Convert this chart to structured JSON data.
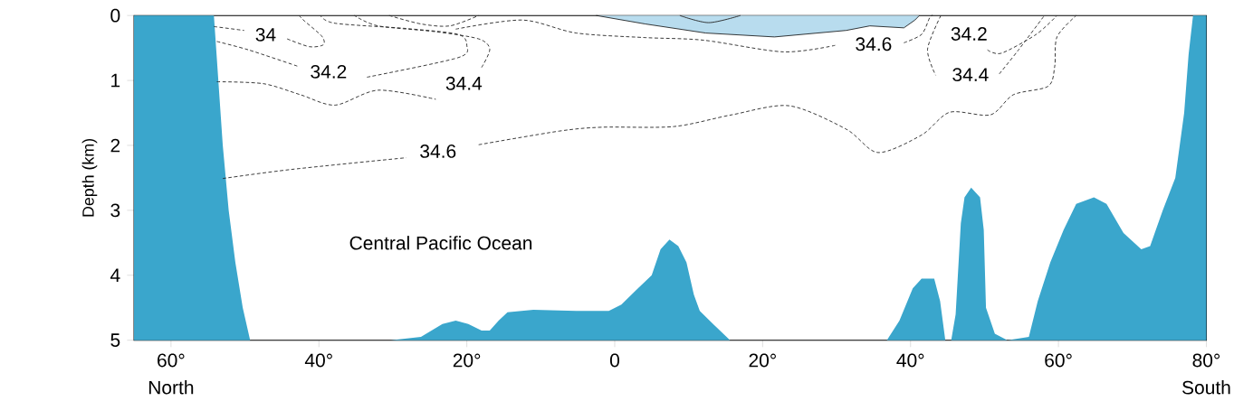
{
  "chart_data": {
    "type": "line",
    "ylabel": "Depth (km)",
    "annotations": [
      "Central Pacific Ocean",
      "North",
      "South"
    ],
    "xlim": [
      65,
      -80
    ],
    "ylim": [
      5,
      0
    ],
    "xticks": [
      {
        "value": 60,
        "label": "60°"
      },
      {
        "value": 40,
        "label": "40°"
      },
      {
        "value": 20,
        "label": "20°"
      },
      0,
      {
        "value": -20,
        "label": "20°"
      },
      {
        "value": -40,
        "label": "40°"
      },
      {
        "value": -60,
        "label": "60°"
      },
      {
        "value": -80,
        "label": "80°"
      }
    ],
    "yticks": [
      0,
      1,
      2,
      3,
      4,
      5
    ],
    "line_style": "dashed",
    "series": [
      {
        "type": "area",
        "color": "#3aa6cc",
        "x": [
          65,
          65,
          54.2,
          53.6,
          53.0,
          52.2,
          51.3,
          50.3,
          49.3,
          30.3,
          26.2,
          23.3,
          21.5,
          19.8,
          18,
          16.9,
          15.7,
          14.5,
          11,
          5.2,
          0.8,
          -0.9,
          -2.7,
          -5,
          -6.2,
          -7.4,
          -8.6,
          -9.7,
          -10.7,
          -11.5,
          -13.3,
          -15.6,
          -36.8,
          -38.5,
          -40.3,
          -41.5,
          -43.2,
          -44,
          -44.7,
          -45.5,
          -46.1,
          -46.8,
          -47.3,
          -48.2,
          -49.4,
          -49.9,
          -50.2,
          -51.4,
          -53.1,
          -56,
          -57.2,
          -58.9,
          -60.7,
          -62.4,
          -64.8,
          -66.5,
          -68.8,
          -71.2,
          -72.4,
          -74.1,
          -75.8,
          -77,
          -77.6,
          -78.2,
          -80,
          -80
        ],
        "values": [
          5,
          0,
          0,
          1.0,
          2.0,
          3.0,
          3.8,
          4.5,
          5,
          5,
          4.95,
          4.75,
          4.7,
          4.75,
          4.85,
          4.85,
          4.7,
          4.57,
          4.53,
          4.55,
          4.55,
          4.45,
          4.25,
          4.0,
          3.6,
          3.45,
          3.55,
          3.8,
          4.3,
          4.55,
          4.75,
          5,
          5,
          4.7,
          4.2,
          4.05,
          4.05,
          4.4,
          5,
          5,
          4.6,
          3.2,
          2.8,
          2.65,
          2.8,
          3.3,
          4.5,
          4.9,
          5,
          4.95,
          4.4,
          3.8,
          3.3,
          2.9,
          2.8,
          2.9,
          3.35,
          3.6,
          3.55,
          3.0,
          2.5,
          1.5,
          0.6,
          0,
          0,
          5
        ]
      },
      {
        "type": "area",
        "color": "#b8dcee",
        "x": [
          2.5,
          -4.1,
          -12.3,
          -21.6,
          -31.3,
          -34.5,
          -39.1,
          -40.6,
          -41.2
        ],
        "values": [
          0,
          0.13,
          0.27,
          0.33,
          0.23,
          0.16,
          0.19,
          0.07,
          0
        ]
      },
      {
        "name": "34",
        "color": "#222222",
        "x": [
          54.2,
          50.1,
          47.2,
          44.3,
          41.3,
          39.4,
          39.6,
          41.9,
          42.7
        ],
        "values": [
          0.17,
          0.23,
          null,
          0.36,
          0.48,
          0.45,
          0.32,
          0.09,
          0
        ]
      },
      {
        "name": "34.2",
        "color": "#222222",
        "x": [
          53.8,
          49.5,
          42.9,
          38.7,
          33.5,
          21.2,
          20.0,
          21.2,
          28.2,
          37.8,
          39.8
        ],
        "values": [
          0.4,
          0.53,
          0.78,
          null,
          0.95,
          0.65,
          0.46,
          0.29,
          0.2,
          0.12,
          0
        ]
      },
      {
        "name": "34.4",
        "color": "#222222",
        "x": [
          53.8,
          47.5,
          42.5,
          37.8,
          32.0,
          24.2,
          20.4,
          18.0,
          16.9,
          18.4,
          24.2,
          32.0,
          35.2
        ],
        "values": [
          1.02,
          1.05,
          1.22,
          1.38,
          1.15,
          1.29,
          null,
          0.8,
          0.52,
          0.36,
          0.25,
          0.16,
          0
        ]
      },
      {
        "color": "#222222",
        "x": [
          30.5,
          26.2,
          22.3,
          18.4
        ],
        "values": [
          0,
          0.13,
          0.16,
          0
        ]
      },
      {
        "name": "34.6",
        "color": "#222222",
        "x": [
          21.5,
          12.5,
          5.2,
          -4.1,
          -12.0,
          -22.8,
          -29.8,
          -35.0,
          -39.1,
          -41.5,
          -42.6,
          -43.0
        ],
        "values": [
          0.21,
          0.07,
          0.27,
          0.34,
          0.38,
          0.56,
          0.46,
          null,
          0.42,
          0.29,
          0.03,
          0
        ]
      },
      {
        "color": "#222222",
        "line_style": "solid",
        "x": [
          -8.8,
          -12.7,
          -17.0
        ],
        "values": [
          0,
          0.11,
          0
        ]
      },
      {
        "name": "34.6",
        "color": "#222222",
        "x": [
          53.0,
          43.7,
          28.2,
          23.9,
          18.4,
          7.5,
          1.7,
          -8.0,
          -15.8,
          -23.6,
          -31.3,
          -35.6,
          -41.5,
          -45.3,
          -50.8,
          -53.9,
          -58.6,
          -59.5,
          -59.8,
          -62.4
        ],
        "values": [
          2.51,
          2.37,
          2.19,
          null,
          1.99,
          1.78,
          1.72,
          1.71,
          1.53,
          1.39,
          1.75,
          2.11,
          1.84,
          1.49,
          1.53,
          1.22,
          1.09,
          0.78,
          0.33,
          0
        ]
      },
      {
        "name": "34.2",
        "color": "#222222",
        "x": [
          -50.4,
          -52.3,
          -57.0,
          -59.8
        ],
        "values": [
          0.53,
          0.58,
          0.29,
          0
        ]
      },
      {
        "name": "34.4",
        "color": "#222222",
        "x": [
          -44.1,
          -42.3,
          -43.4,
          -48.1,
          -52.0,
          -54.6,
          -58.1
        ],
        "values": [
          0,
          0.52,
          0.92,
          null,
          0.9,
          0.53,
          0
        ]
      }
    ]
  }
}
